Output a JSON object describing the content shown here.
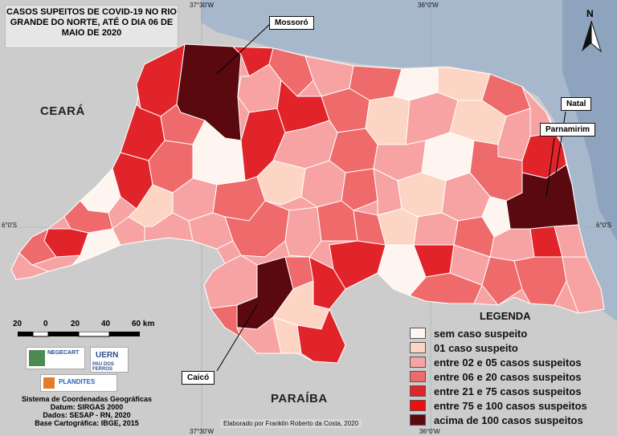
{
  "title": "CASOS SUPEITOS DE COVID-19 NO RIO GRANDE DO NORTE, ATÉ O DIA 06 DE MAIO DE 2020",
  "coords": {
    "top_left_lon": "37°30'W",
    "top_right_lon": "36°0'W",
    "bottom_left_lon": "37°30'W",
    "bottom_right_lon": "36°0'W",
    "left_lat": "6°0'S",
    "right_lat": "6°0'S"
  },
  "regions": {
    "ceara": "CEARÁ",
    "paraiba": "PARAÍBA"
  },
  "cities": {
    "mossoro": "Mossoró",
    "natal": "Natal",
    "parnamirim": "Parnamirim",
    "caico": "Caicó"
  },
  "north": "N",
  "scale": {
    "labels": [
      "20",
      "0",
      "20",
      "40",
      "60 km"
    ]
  },
  "logos": {
    "negecart": "NEGECART",
    "uern": "UERN",
    "uern_sub": "PAU DOS FERROS",
    "plandites": "PLANDITES"
  },
  "info": {
    "line1": "Sistema de Coordenadas Geográficas",
    "line2": "Datum: SIRGAS 2000",
    "line3": "Dados: SESAP - RN, 2020",
    "line4": "Base Cartográfica: IBGE, 2015"
  },
  "credit": "Elaborado por Franklin Roberto da Costa, 2020",
  "legend": {
    "title": "LEGENDA",
    "items": [
      {
        "label": "sem caso suspeito",
        "color": "#fff5f0"
      },
      {
        "label": "01 caso suspeito",
        "color": "#fcd5c4"
      },
      {
        "label": "entre 02 e 05 casos suspeitos",
        "color": "#f7a3a3"
      },
      {
        "label": "entre 06 e 20 casos suspeitos",
        "color": "#ef6a6a"
      },
      {
        "label": "entre 21 e 75 casos suspeitos",
        "color": "#e0242a"
      },
      {
        "label": "entre 75 e 100 casos suspeitos",
        "color": "#f20d0d"
      },
      {
        "label": "acima de 100 casos suspeitos",
        "color": "#5a0a0f"
      }
    ]
  },
  "colors": {
    "sea": "#a7b8cc",
    "land_neighbor": "#cccccc",
    "boundary": "#ffffff"
  }
}
